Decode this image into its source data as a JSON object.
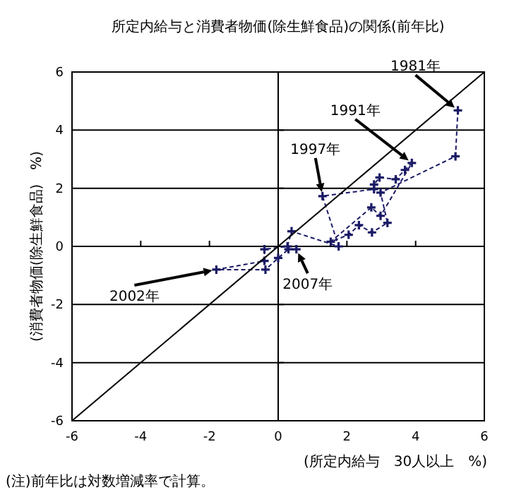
{
  "chart_data": {
    "type": "line",
    "title": "所定内給与と消費者物価(除生鮮食品)の関係(前年比)",
    "xlabel": "(所定内給与　30人以上　%)",
    "ylabel": "(消費者物価(除生鮮食品)　%)",
    "xlim": [
      -6,
      6
    ],
    "xticks": [
      -6,
      -4,
      -2,
      0,
      2,
      4,
      6
    ],
    "ylim": [
      -6,
      6
    ],
    "yticks": [
      -6,
      -4,
      -2,
      0,
      2,
      4,
      6
    ],
    "grid": "y",
    "series": [
      {
        "color": "#1a1a66",
        "marker": "cross",
        "line_style": "dashed",
        "x": [
          5.23,
          5.16,
          2.98,
          3.18,
          2.73,
          2.35,
          2.05,
          1.53,
          2.71,
          2.98,
          3.89,
          3.69,
          3.42,
          2.95,
          2.79,
          2.79,
          1.29,
          1.76,
          0.39,
          0.27,
          -0.4,
          -0.4,
          -1.8,
          -0.37,
          0.0,
          0.3,
          0.53
        ],
        "values": [
          4.68,
          3.1,
          1.85,
          0.81,
          0.48,
          0.73,
          0.4,
          0.16,
          1.34,
          1.05,
          2.87,
          2.63,
          2.31,
          2.37,
          2.13,
          1.97,
          1.73,
          0.0,
          0.52,
          0.0,
          -0.1,
          -0.5,
          -0.8,
          -0.8,
          -0.4,
          -0.1,
          -0.1
        ]
      },
      {
        "color": "#000000",
        "marker": "none",
        "line_style": "solid",
        "x": [
          -6,
          6
        ],
        "values": [
          -6,
          6
        ]
      }
    ],
    "ref_lines": [
      {
        "axis": "x",
        "value": 0,
        "color": "#000000"
      }
    ],
    "annotations": [
      {
        "text": "1981年",
        "x": 5.23,
        "y": 4.68
      },
      {
        "text": "1991年",
        "x": 3.89,
        "y": 2.87
      },
      {
        "text": "1997年",
        "x": 1.29,
        "y": 1.73
      },
      {
        "text": "2002年",
        "x": -1.8,
        "y": -0.8
      },
      {
        "text": "2007年",
        "x": 0.53,
        "y": -0.1
      },
      "(注)前年比は対数増減率で計算。"
    ]
  }
}
